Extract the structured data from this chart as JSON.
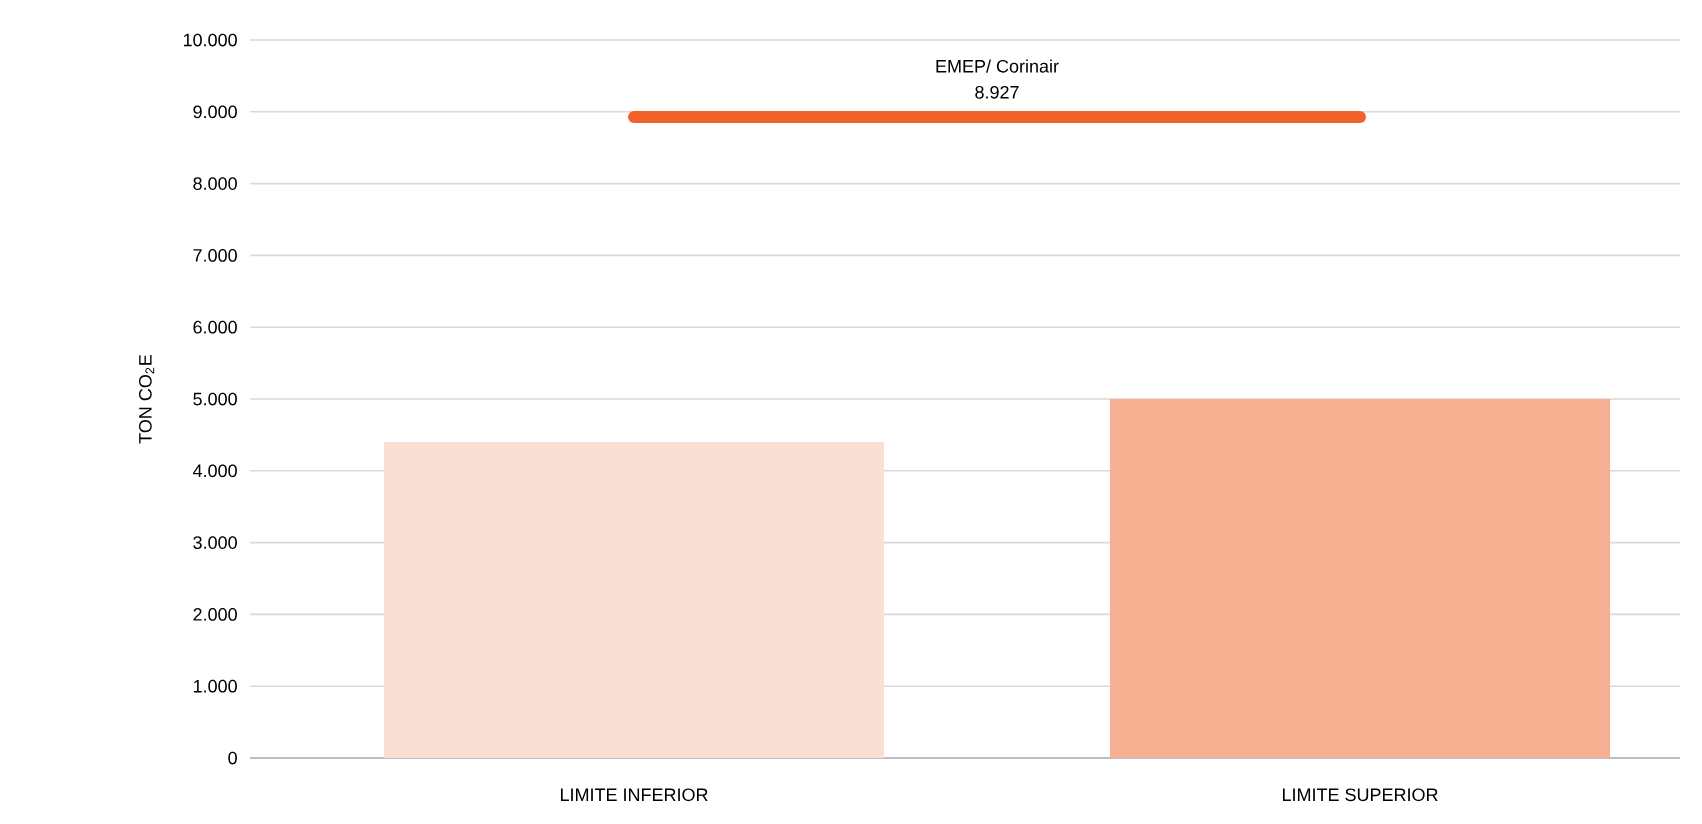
{
  "chart_data": {
    "type": "bar",
    "ylabel": "TON CO$_{2}$E",
    "categories": [
      "LIMITE INFERIOR",
      "LIMITE SUPERIOR"
    ],
    "series": [
      {
        "colors": [
          "#fadfd4",
          "#f6af91"
        ],
        "values": [
          4400,
          5000
        ]
      },
      {
        "type": "line",
        "name": "EMEP/ Corinair",
        "color": "#f0622a",
        "values": [
          8927,
          8927
        ]
      }
    ],
    "annotations": [
      {
        "text": "8.927",
        "y": 8927
      }
    ],
    "ylim": [
      0,
      10000
    ],
    "yticks": [
      {
        "value": 0,
        "label": "0"
      },
      {
        "value": 1000,
        "label": "1.000"
      },
      {
        "value": 2000,
        "label": "2.000"
      },
      {
        "value": 3000,
        "label": "3.000"
      },
      {
        "value": 4000,
        "label": "4.000"
      },
      {
        "value": 5000,
        "label": "5.000"
      },
      {
        "value": 6000,
        "label": "6.000"
      },
      {
        "value": 7000,
        "label": "7.000"
      },
      {
        "value": 8000,
        "label": "8.000"
      },
      {
        "value": 9000,
        "label": "9.000"
      },
      {
        "value": 10000,
        "label": "10.000"
      }
    ],
    "grid": "y"
  }
}
